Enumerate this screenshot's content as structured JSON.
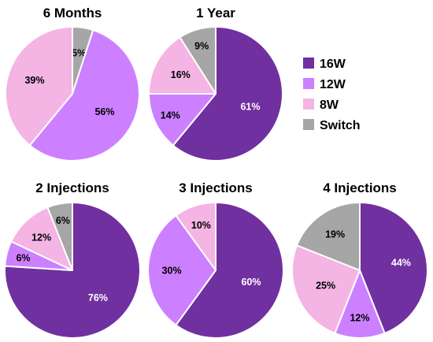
{
  "chart_data": [
    {
      "type": "pie",
      "title": "6 Months",
      "slices": [
        {
          "name": "Switch",
          "value": 5,
          "label": "5%"
        },
        {
          "name": "12W",
          "value": 56,
          "label": "56%"
        },
        {
          "name": "8W",
          "value": 39,
          "label": "39%"
        }
      ]
    },
    {
      "type": "pie",
      "title": "1 Year",
      "slices": [
        {
          "name": "16W",
          "value": 61,
          "label": "61%"
        },
        {
          "name": "12W",
          "value": 14,
          "label": "14%"
        },
        {
          "name": "8W",
          "value": 16,
          "label": "16%"
        },
        {
          "name": "Switch",
          "value": 9,
          "label": "9%"
        }
      ]
    },
    {
      "type": "pie",
      "title": "2 Injections",
      "slices": [
        {
          "name": "16W",
          "value": 76,
          "label": "76%"
        },
        {
          "name": "12W",
          "value": 6,
          "label": "6%"
        },
        {
          "name": "8W",
          "value": 12,
          "label": "12%"
        },
        {
          "name": "Switch",
          "value": 6,
          "label": "6%"
        }
      ]
    },
    {
      "type": "pie",
      "title": "3 Injections",
      "slices": [
        {
          "name": "16W",
          "value": 60,
          "label": "60%"
        },
        {
          "name": "12W",
          "value": 30,
          "label": "30%"
        },
        {
          "name": "8W",
          "value": 10,
          "label": "10%"
        }
      ]
    },
    {
      "type": "pie",
      "title": "4 Injections",
      "slices": [
        {
          "name": "16W",
          "value": 44,
          "label": "44%"
        },
        {
          "name": "12W",
          "value": 12,
          "label": "12%"
        },
        {
          "name": "8W",
          "value": 25,
          "label": "25%"
        },
        {
          "name": "Switch",
          "value": 19,
          "label": "19%"
        }
      ]
    }
  ],
  "legend": {
    "placement": "right",
    "items": [
      {
        "name": "16W",
        "color": "#7030a0"
      },
      {
        "name": "12W",
        "color": "#cc80ff"
      },
      {
        "name": "8W",
        "color": "#f4b4e4"
      },
      {
        "name": "Switch",
        "color": "#a6a6a6"
      }
    ]
  },
  "colors": {
    "16W": "#7030a0",
    "12W": "#cc80ff",
    "8W": "#f4b4e4",
    "Switch": "#a6a6a6",
    "label_on_dark": "#ffffff",
    "label_on_light": "#000000"
  }
}
